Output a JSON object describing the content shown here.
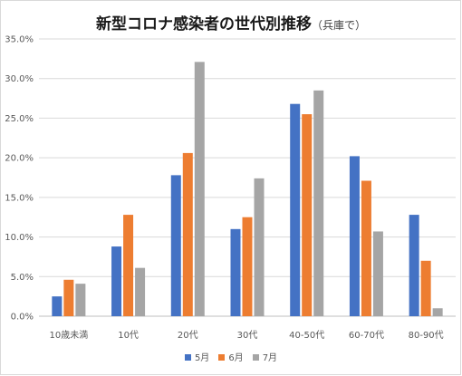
{
  "chart_data": {
    "type": "bar",
    "title": "新型コロナ感染者の世代別推移",
    "subtitle": "（兵庫で）",
    "categories": [
      "10歳未満",
      "10代",
      "20代",
      "30代",
      "40-50代",
      "60-70代",
      "80-90代"
    ],
    "series": [
      {
        "name": "5月",
        "color": "#4472C4",
        "values": [
          2.5,
          8.8,
          17.8,
          11.0,
          26.8,
          20.2,
          12.8
        ]
      },
      {
        "name": "6月",
        "color": "#ED7D31",
        "values": [
          4.6,
          12.8,
          20.6,
          12.5,
          25.5,
          17.1,
          7.0
        ]
      },
      {
        "name": "7月",
        "color": "#A5A5A5",
        "values": [
          4.1,
          6.1,
          32.1,
          17.4,
          28.5,
          10.7,
          1.0
        ]
      }
    ],
    "ylim": [
      0,
      35
    ],
    "yticks": [
      "0.0%",
      "5.0%",
      "10.0%",
      "15.0%",
      "20.0%",
      "25.0%",
      "30.0%",
      "35.0%"
    ],
    "grid": true,
    "legend_position": "bottom"
  }
}
